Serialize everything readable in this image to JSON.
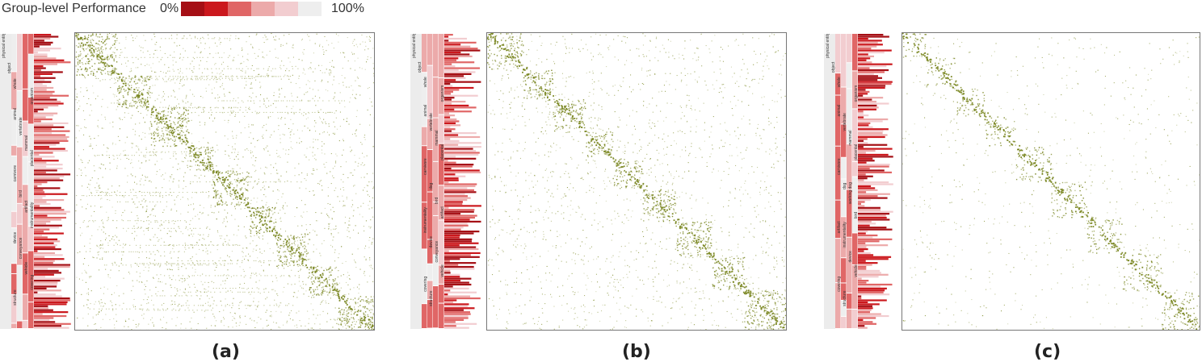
{
  "legend": {
    "title": "Group-level Performance",
    "min_label": "0%",
    "max_label": "100%",
    "colors": [
      "#a50f15",
      "#cb181d",
      "#e06666",
      "#ecaaaa",
      "#f2cdd0",
      "#eeeeee"
    ]
  },
  "colors": {
    "dot": "#7e8a28",
    "tree_gray": "#ececec",
    "tree_pink": "#f6dde0",
    "tree_red": "#cf1f2a"
  },
  "chart_data": [
    {
      "type": "heatmap",
      "panel": "(a)",
      "tree_labels": [
        "physical entity",
        "object",
        "whole",
        "organism",
        "animal",
        "vertebrate",
        "mammal",
        "placental",
        "carnivore",
        "bird",
        "artifact",
        "instrumentality",
        "device",
        "conveyance",
        "vehicle",
        "covering",
        "structure"
      ],
      "diagonal_blocks": [
        [
          0,
          0.14
        ],
        [
          0.14,
          0.25
        ],
        [
          0.25,
          0.38
        ],
        [
          0.38,
          0.46
        ],
        [
          0.46,
          0.58
        ],
        [
          0.58,
          0.67
        ],
        [
          0.67,
          0.78
        ],
        [
          0.78,
          0.88
        ],
        [
          0.88,
          1.0
        ]
      ]
    },
    {
      "type": "heatmap",
      "panel": "(b)",
      "tree_labels": [
        "physical entity",
        "object",
        "whole",
        "organism",
        "animal",
        "vertebrate",
        "mammal",
        "placental",
        "carnivore",
        "dog",
        "bird",
        "artifact",
        "instrumentality",
        "device",
        "conveyance",
        "vehicle",
        "covering",
        "structure"
      ],
      "diagonal_blocks": [
        [
          0,
          0.12
        ],
        [
          0.12,
          0.22
        ],
        [
          0.22,
          0.33
        ],
        [
          0.33,
          0.42
        ],
        [
          0.42,
          0.52
        ],
        [
          0.52,
          0.63
        ],
        [
          0.63,
          0.75
        ],
        [
          0.75,
          0.86
        ],
        [
          0.86,
          1.0
        ]
      ]
    },
    {
      "type": "heatmap",
      "panel": "(c)",
      "tree_labels": [
        "physical entity",
        "object",
        "whole",
        "organism",
        "animal",
        "vertebrate",
        "mammal",
        "placental",
        "carnivore",
        "dog",
        "working dog",
        "bird",
        "artifact",
        "instrumentality",
        "device",
        "vehicle",
        "covering",
        "structure"
      ],
      "diagonal_blocks": [
        [
          0,
          0.08
        ],
        [
          0.08,
          0.18
        ],
        [
          0.18,
          0.28
        ],
        [
          0.28,
          0.38
        ],
        [
          0.38,
          0.5
        ],
        [
          0.5,
          0.62
        ],
        [
          0.62,
          0.74
        ],
        [
          0.74,
          0.87
        ],
        [
          0.87,
          1.0
        ]
      ]
    }
  ]
}
